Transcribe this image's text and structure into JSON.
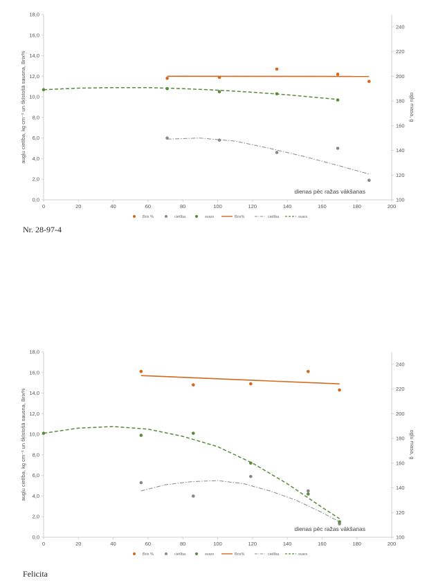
{
  "chart_data": [
    {
      "type": "scatter",
      "caption": "Nr. 28-97-4",
      "x_label": "dienas pēc ražas vākšanas",
      "y_left_label": "augļu cietība, kg cm⁻² un šķīstošā sausna, Brix%",
      "y_right_label": "ogļu masa, g",
      "x_range": [
        0,
        200
      ],
      "x_ticks": [
        "0",
        "20",
        "40",
        "60",
        "80",
        "100",
        "120",
        "140",
        "160",
        "180",
        "200"
      ],
      "y_left_range": [
        0,
        18
      ],
      "y_left_ticks": [
        "0,0",
        "2,0",
        "4,0",
        "6,0",
        "8,0",
        "10,0",
        "12,0",
        "14,0",
        "16,0",
        "18,0"
      ],
      "y_right_range": [
        100,
        250
      ],
      "y_right_ticks": [
        "100",
        "120",
        "140",
        "160",
        "180",
        "200",
        "220",
        "240"
      ],
      "legend": [
        "Brix %",
        "cietība",
        "svars",
        "Brix%",
        "cietība",
        "svars"
      ],
      "colors": {
        "brix": "#d2691e",
        "cietiba": "#888888",
        "svars": "#5a8a3a"
      },
      "series": [
        {
          "name": "Brix %",
          "x": [
            71,
            101,
            134,
            169,
            187
          ],
          "y": [
            11.8,
            11.9,
            12.7,
            12.2,
            11.5
          ]
        },
        {
          "name": "cietība",
          "x": [
            71,
            101,
            134,
            169,
            187
          ],
          "y": [
            6.0,
            5.8,
            4.6,
            5.0,
            1.9
          ]
        },
        {
          "name": "svars",
          "x": [
            0,
            71,
            101,
            134,
            169
          ],
          "y": [
            10.7,
            10.8,
            10.5,
            10.3,
            9.7
          ]
        }
      ],
      "trends": {
        "brix": {
          "x": [
            71,
            187
          ],
          "y": [
            12.0,
            11.98
          ]
        },
        "cietiba": {
          "x": [
            71,
            90,
            110,
            130,
            150,
            170,
            187
          ],
          "y": [
            5.9,
            6.0,
            5.7,
            5.0,
            4.2,
            3.3,
            2.5
          ]
        },
        "svars": {
          "x": [
            0,
            20,
            40,
            60,
            80,
            100,
            120,
            140,
            169
          ],
          "y": [
            10.7,
            10.85,
            10.9,
            10.9,
            10.8,
            10.65,
            10.45,
            10.2,
            9.75
          ]
        }
      }
    },
    {
      "type": "scatter",
      "caption": "Felicita",
      "x_label": "dienas pēc ražas vākšanas",
      "y_left_label": "augļu cietība, kg cm⁻² un šķīstošā sausna, Brix%",
      "y_right_label": "ogļu masa, g",
      "x_range": [
        0,
        200
      ],
      "x_ticks": [
        "0",
        "20",
        "40",
        "60",
        "80",
        "100",
        "120",
        "140",
        "160",
        "180",
        "200"
      ],
      "y_left_range": [
        0,
        18
      ],
      "y_left_ticks": [
        "0,0",
        "2,0",
        "4,0",
        "6,0",
        "8,0",
        "10,0",
        "12,0",
        "14,0",
        "16,0",
        "18,0"
      ],
      "y_right_range": [
        100,
        250
      ],
      "y_right_ticks": [
        "100",
        "120",
        "140",
        "160",
        "180",
        "200",
        "220",
        "240"
      ],
      "legend": [
        "Brix %",
        "cietība",
        "svars",
        "Brix%",
        "cietība",
        "svars"
      ],
      "colors": {
        "brix": "#d2691e",
        "cietiba": "#888888",
        "svars": "#5a8a3a"
      },
      "series": [
        {
          "name": "Brix %",
          "x": [
            56,
            86,
            119,
            152,
            170
          ],
          "y": [
            16.1,
            14.8,
            14.9,
            16.1,
            14.3
          ]
        },
        {
          "name": "cietība",
          "x": [
            56,
            86,
            119,
            152,
            170
          ],
          "y": [
            5.3,
            4.0,
            5.9,
            4.5,
            1.3
          ]
        },
        {
          "name": "svars",
          "x": [
            0,
            56,
            86,
            119,
            152,
            170
          ],
          "y": [
            10.1,
            9.9,
            10.1,
            7.2,
            4.2,
            1.5
          ]
        }
      ],
      "trends": {
        "brix": {
          "x": [
            56,
            170
          ],
          "y": [
            15.7,
            14.9
          ]
        },
        "cietiba": {
          "x": [
            56,
            70,
            85,
            100,
            115,
            130,
            145,
            160,
            170
          ],
          "y": [
            4.5,
            5.1,
            5.4,
            5.5,
            5.2,
            4.5,
            3.6,
            2.4,
            1.5
          ]
        },
        "svars": {
          "x": [
            0,
            20,
            40,
            60,
            80,
            100,
            120,
            140,
            160,
            170
          ],
          "y": [
            10.1,
            10.6,
            10.75,
            10.5,
            9.8,
            8.8,
            7.2,
            5.2,
            2.9,
            1.8
          ]
        }
      }
    }
  ]
}
